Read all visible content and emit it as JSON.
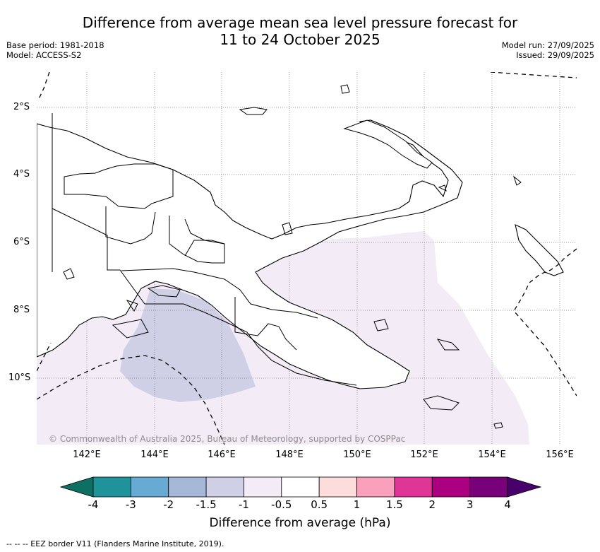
{
  "title_line1": "Difference from average mean sea level pressure forecast for",
  "title_line2": "11 to 24 October 2025",
  "meta": {
    "base_period": "Base period: 1981-2018",
    "model": "Model: ACCESS-S2",
    "model_run": "Model run: 27/09/2025",
    "issued": "Issued: 29/09/2025"
  },
  "lat_labels": [
    "2°S",
    "4°S",
    "6°S",
    "8°S",
    "10°S"
  ],
  "lon_labels": [
    "142°E",
    "144°E",
    "146°E",
    "148°E",
    "150°E",
    "152°E",
    "154°E",
    "156°E"
  ],
  "copyright": "© Commonwealth of Australia 2025, Bureau of Meteorology, supported by COSPPac",
  "colorbar": {
    "title": "Difference from average (hPa)",
    "tick_labels": [
      "-4",
      "-3",
      "-2",
      "-1.5",
      "-1",
      "-0.5",
      "0.5",
      "1",
      "1.5",
      "2",
      "3",
      "4"
    ],
    "colors": [
      "#0d7063",
      "#1e9399",
      "#67abd5",
      "#a6b8d8",
      "#cfd0e6",
      "#f3ecf6",
      "#ffffff",
      "#fddcdc",
      "#f9a1bc",
      "#de3596",
      "#ab0080",
      "#780079",
      "#48006b"
    ]
  },
  "footer": "-- -- -- EEZ border V11 (Flanders Marine Institute, 2019)."
}
